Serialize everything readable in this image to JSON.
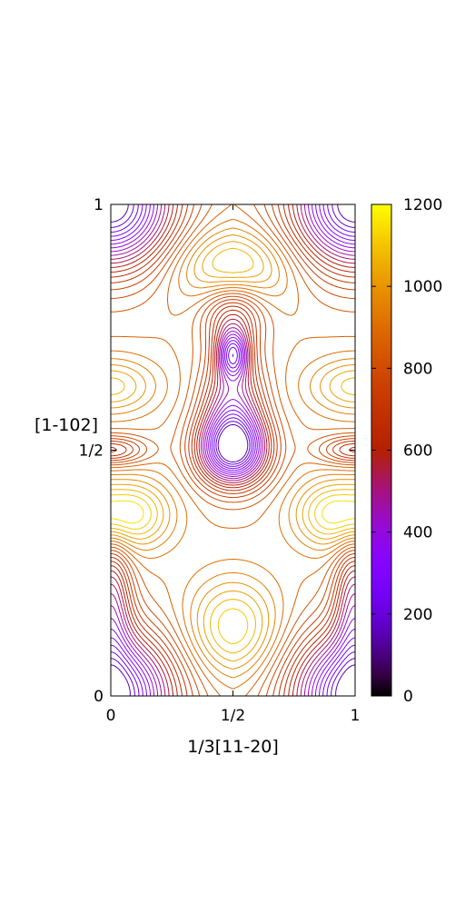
{
  "chart_data": {
    "type": "contour",
    "xlabel": "1/3[11-20]",
    "ylabel": "[1-102]",
    "xlim": [
      0,
      1
    ],
    "ylim": [
      0,
      1
    ],
    "x_ticks": [
      {
        "value": 0,
        "label": "0"
      },
      {
        "value": 0.5,
        "label": "1/2"
      },
      {
        "value": 1,
        "label": "1"
      }
    ],
    "y_ticks": [
      {
        "value": 0,
        "label": "0"
      },
      {
        "value": 0.5,
        "label": "1/2"
      },
      {
        "value": 1,
        "label": "1"
      }
    ],
    "colorbar": {
      "range": [
        0,
        1200
      ],
      "ticks": [
        {
          "value": 0,
          "label": "0"
        },
        {
          "value": 200,
          "label": "200"
        },
        {
          "value": 400,
          "label": "400"
        },
        {
          "value": 600,
          "label": "600"
        },
        {
          "value": 800,
          "label": "800"
        },
        {
          "value": 1000,
          "label": "1000"
        },
        {
          "value": 1200,
          "label": "1200"
        }
      ],
      "palette": "gnuplot-pm3d (black-purple-red-orange-yellow)"
    },
    "contour_levels": {
      "start": 150,
      "end": 1160,
      "step": 40
    },
    "minima": [
      {
        "x": 0.5,
        "y": 0.5,
        "value": 150
      },
      {
        "x": 0.5,
        "y": 0.695,
        "value": 380
      },
      {
        "x": 0.0,
        "y": 1.0,
        "value": 120
      },
      {
        "x": 1.0,
        "y": 1.0,
        "value": 120
      },
      {
        "x": 0.0,
        "y": 0.0,
        "value": 120
      },
      {
        "x": 1.0,
        "y": 0.0,
        "value": 120
      },
      {
        "x": 0.0,
        "y": 0.2,
        "value": 420
      },
      {
        "x": 1.0,
        "y": 0.2,
        "value": 420
      }
    ],
    "maxima": [
      {
        "x": 0.5,
        "y": 0.87,
        "value": 1150
      },
      {
        "x": 0.5,
        "y": 0.14,
        "value": 1140
      },
      {
        "x": 0.0,
        "y": 0.63,
        "value": 1080
      },
      {
        "x": 1.0,
        "y": 0.63,
        "value": 1080
      },
      {
        "x": 0.1,
        "y": 0.37,
        "value": 1130
      },
      {
        "x": 0.9,
        "y": 0.37,
        "value": 1130
      }
    ]
  }
}
